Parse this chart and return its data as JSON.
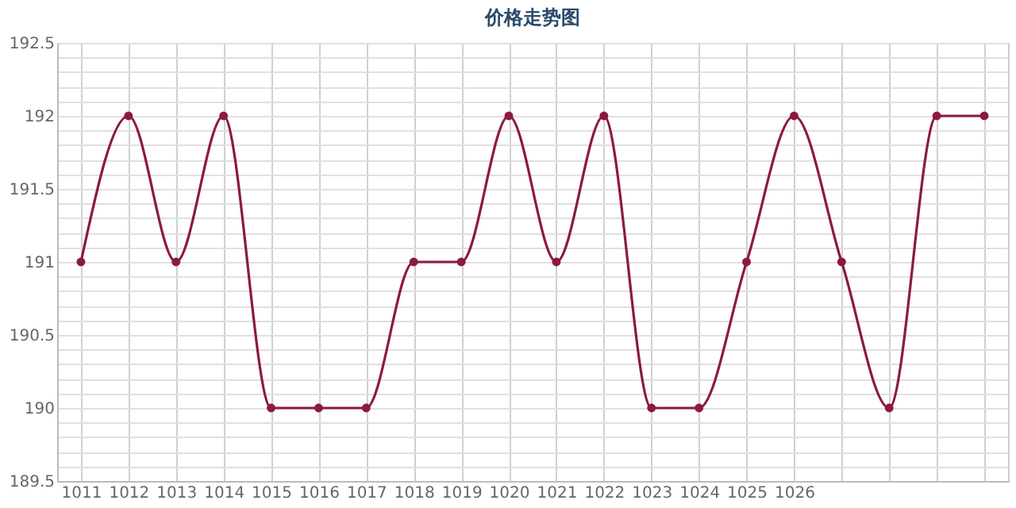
{
  "chart_data": {
    "type": "line",
    "title": "价格走势图",
    "categories": [
      "1011",
      "1012",
      "1013",
      "1014",
      "1015",
      "1016",
      "1017",
      "1018",
      "1019",
      "1020",
      "1021",
      "1022",
      "1023",
      "1024",
      "1025",
      "1026",
      null,
      null,
      null,
      null
    ],
    "series": [
      {
        "color": "#8b1a3f",
        "values": [
          191,
          192,
          191,
          192,
          190,
          190,
          190,
          191,
          191,
          192,
          191,
          192,
          190,
          190,
          191,
          192,
          191,
          190,
          192,
          192
        ]
      }
    ],
    "ylim": [
      189.5,
      192.5
    ],
    "yticks": [
      189.5,
      {
        "value": 189.6,
        "label": null
      },
      {
        "value": 189.7,
        "label": null
      },
      {
        "value": 189.8,
        "label": null
      },
      {
        "value": 189.9,
        "label": null
      },
      190,
      {
        "value": 190.1,
        "label": null
      },
      {
        "value": 190.2,
        "label": null
      },
      {
        "value": 190.3,
        "label": null
      },
      {
        "value": 190.4,
        "label": null
      },
      190.5,
      {
        "value": 190.6,
        "label": null
      },
      {
        "value": 190.7,
        "label": null
      },
      {
        "value": 190.8,
        "label": null
      },
      {
        "value": 190.9,
        "label": null
      },
      191,
      {
        "value": 191.1,
        "label": null
      },
      {
        "value": 191.2,
        "label": null
      },
      {
        "value": 191.3,
        "label": null
      },
      {
        "value": 191.4,
        "label": null
      },
      191.5,
      {
        "value": 191.6,
        "label": null
      },
      {
        "value": 191.7,
        "label": null
      },
      {
        "value": 191.8,
        "label": null
      },
      {
        "value": 191.9,
        "label": null
      },
      192,
      {
        "value": 192.1,
        "label": null
      },
      {
        "value": 192.2,
        "label": null
      },
      {
        "value": 192.3,
        "label": null
      },
      {
        "value": 192.4,
        "label": null
      },
      192.5
    ],
    "grid": true,
    "marker": "circle",
    "line_style": "solid"
  }
}
